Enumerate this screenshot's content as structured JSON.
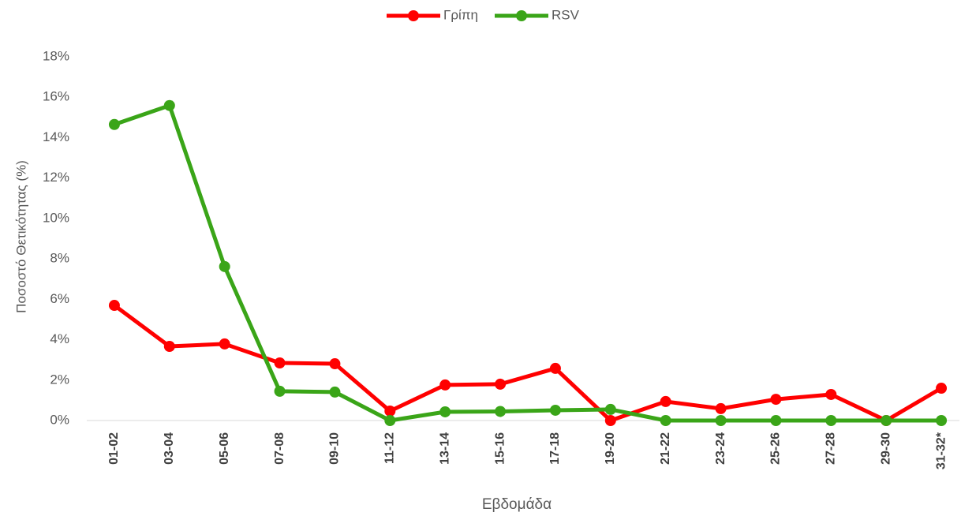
{
  "chart_data": {
    "type": "line",
    "categories": [
      "01-02",
      "03-04",
      "05-06",
      "07-08",
      "09-10",
      "11-12",
      "13-14",
      "15-16",
      "17-18",
      "19-20",
      "21-22",
      "23-24",
      "25-26",
      "27-28",
      "29-30",
      "31-32*"
    ],
    "series": [
      {
        "name": "Γρίπη",
        "color": "#ff0000",
        "values": [
          5.7,
          3.67,
          3.79,
          2.85,
          2.81,
          0.47,
          1.76,
          1.8,
          2.58,
          0,
          0.94,
          0.59,
          1.05,
          1.29,
          0,
          1.6
        ]
      },
      {
        "name": "RSV",
        "color": "#3aa518",
        "values": [
          14.65,
          15.59,
          7.62,
          1.45,
          1.41,
          0,
          0.43,
          0.45,
          0.51,
          0.55,
          0,
          0,
          0,
          0,
          0,
          0
        ]
      }
    ],
    "ylim": [
      0,
      18
    ],
    "yticks": [
      {
        "value": 0,
        "label": "0%"
      },
      {
        "value": 2,
        "label": "2%"
      },
      {
        "value": 4,
        "label": "4%"
      },
      {
        "value": 6,
        "label": "6%"
      },
      {
        "value": 8,
        "label": "8%"
      },
      {
        "value": 10,
        "label": "10%"
      },
      {
        "value": 12,
        "label": "12%"
      },
      {
        "value": 14,
        "label": "14%"
      },
      {
        "value": 16,
        "label": "16%"
      },
      {
        "value": 18,
        "label": "18%"
      }
    ],
    "y_label": "Ποσοστό Θετικότητας (%)",
    "x_label": "Εβδομάδα",
    "legend": "top"
  }
}
